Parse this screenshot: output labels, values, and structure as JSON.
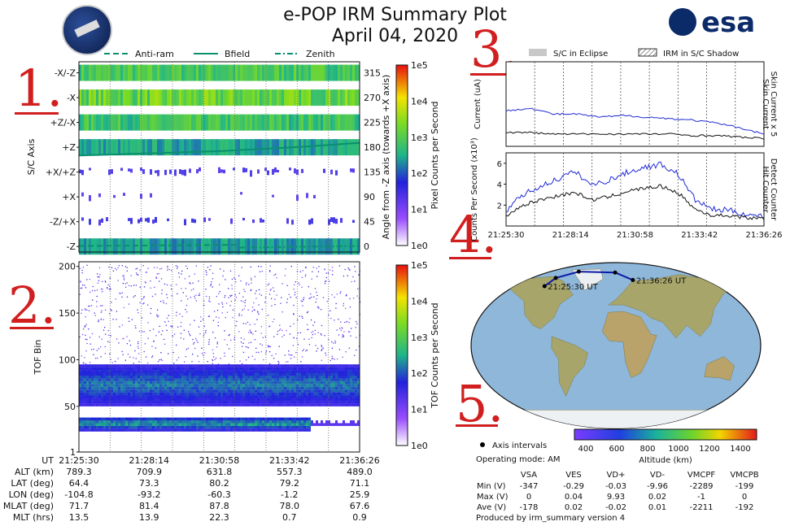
{
  "header": {
    "title": "e-POP IRM Summary Plot",
    "date": "April 04, 2020",
    "agency": "esa"
  },
  "annotations": [
    "1.",
    "2.",
    "3.",
    "4.",
    "5."
  ],
  "colors": {
    "annotation": "#d11f1f",
    "bfield": "#0a8f6f",
    "antiram": "#0a8f6f",
    "zenith": "#0a8f6f",
    "skin": "#1f2ad6",
    "hit": "#111111",
    "orbit": "#0a1aa8"
  },
  "chart_data": [
    {
      "id": "sc-axis",
      "type": "heatmap",
      "ylabel": "S/C Axis",
      "y2label": "Angle from -Z axis (towards +X axis)",
      "rows": [
        "-X/-Z",
        "-X",
        "+Z/-X",
        "+Z",
        "+X/+Z",
        "+X",
        "-Z/+X",
        "-Z"
      ],
      "right_ticks": [
        "315",
        "270",
        "225",
        "180",
        "135",
        "90",
        "45",
        "0"
      ],
      "ylim": [
        -10,
        335
      ],
      "row_intensity": [
        0.8,
        0.95,
        0.75,
        0.55,
        0.1,
        0.06,
        0.12,
        0.5
      ],
      "legend": [
        {
          "label": "Anti-ram",
          "style": "dashed"
        },
        {
          "label": "Bfield",
          "style": "solid"
        },
        {
          "label": "Zenith",
          "style": "dashdot"
        }
      ],
      "bfield_angle": {
        "x": [
          0,
          0.5,
          0.8,
          1.0
        ],
        "y": [
          165,
          173,
          181,
          188
        ]
      },
      "antiram_angle": {
        "x": [
          0,
          0.57
        ],
        "y": [
          1,
          3
        ]
      },
      "zenith_angle": {
        "x": [
          0.57,
          1.0
        ],
        "y": [
          -2,
          1
        ]
      },
      "colorbar": {
        "label": "Pixel Counts per Second",
        "ticks": [
          "1e5",
          "1e4",
          "1e3",
          "1e2",
          "1e1",
          "1e0"
        ]
      }
    },
    {
      "id": "tof",
      "type": "heatmap",
      "ylabel": "TOF Bin",
      "ylim": [
        1,
        205
      ],
      "yticks": [
        1,
        50,
        100,
        150,
        200
      ],
      "bands": [
        {
          "center": 72,
          "halfwidth": 22,
          "intensity": 0.75
        },
        {
          "center": 30,
          "halfwidth": 7,
          "intensity": 0.9
        }
      ],
      "colorbar": {
        "label": "TOF Counts per Second",
        "ticks": [
          "1e5",
          "1e4",
          "1e3",
          "1e2",
          "1e1",
          "1e0"
        ]
      }
    },
    {
      "id": "current",
      "type": "line",
      "ylabel": "Current (uA)",
      "right_labels": [
        "Skin Current x 5",
        "Skin Current"
      ],
      "ylim": [
        -0.5,
        5
      ],
      "series": [
        {
          "name": "Skin Current x 5",
          "values": [
            1.8,
            2.0,
            1.6,
            1.6,
            1.4,
            1.5,
            1.4,
            1.3,
            1.2,
            1.0,
            0.7,
            0.3
          ]
        },
        {
          "name": "Skin Current",
          "values": [
            0.4,
            0.4,
            0.3,
            0.3,
            0.3,
            0.3,
            0.3,
            0.3,
            0.2,
            0.2,
            0.1,
            0.0
          ]
        }
      ],
      "legend": [
        {
          "label": "S/C in Eclipse",
          "style": "solid"
        },
        {
          "label": "IRM in S/C Shadow",
          "style": "hatched"
        }
      ]
    },
    {
      "id": "counts",
      "type": "line",
      "ylabel": "Counts Per Second (x10³)",
      "right_labels": [
        "Detect Counter",
        "Hit Counter"
      ],
      "xticks": [
        "21:25:30",
        "21:28:14",
        "21:30:58",
        "21:33:42",
        "21:36:26"
      ],
      "ylim": [
        0,
        7
      ],
      "yticks": [
        2,
        4,
        6
      ],
      "series": [
        {
          "name": "Detect Counter",
          "values": [
            1.5,
            3.0,
            3.8,
            4.5,
            5.2,
            3.9,
            4.4,
            5.1,
            5.6,
            5.9,
            5.0,
            2.5,
            1.6,
            1.5,
            1.1,
            0.9
          ]
        },
        {
          "name": "Hit Counter",
          "values": [
            1.0,
            2.0,
            2.5,
            2.9,
            3.2,
            2.5,
            2.8,
            3.3,
            3.6,
            3.8,
            3.2,
            1.6,
            1.0,
            1.0,
            0.8,
            0.7
          ]
        }
      ]
    }
  ],
  "time_axis": {
    "ticks": [
      "21:25:30",
      "21:28:14",
      "21:30:58",
      "21:33:42",
      "21:36:26"
    ]
  },
  "ephemeris": [
    {
      "label": "UT",
      "values": [
        "21:25:30",
        "21:28:14",
        "21:30:58",
        "21:33:42",
        "21:36:26"
      ]
    },
    {
      "label": "ALT (km)",
      "values": [
        "789.3",
        "709.9",
        "631.8",
        "557.3",
        "489.0"
      ]
    },
    {
      "label": "LAT (deg)",
      "values": [
        "64.4",
        "73.3",
        "80.2",
        "79.2",
        "71.1"
      ]
    },
    {
      "label": "LON (deg)",
      "values": [
        "-104.8",
        "-93.2",
        "-60.3",
        "-1.2",
        "25.9"
      ]
    },
    {
      "label": "MLAT (deg)",
      "values": [
        "71.7",
        "81.4",
        "87.8",
        "78.0",
        "67.6"
      ]
    },
    {
      "label": "MLT (hrs)",
      "values": [
        "13.5",
        "13.9",
        "22.3",
        "0.7",
        "0.9"
      ]
    }
  ],
  "map": {
    "start_label": "21:25:30 UT",
    "end_label": "21:36:26 UT",
    "track_lon": [
      -104.8,
      -93.2,
      -60.3,
      -1.2,
      25.9
    ],
    "track_lat": [
      64.4,
      73.3,
      80.2,
      79.2,
      71.1
    ],
    "colorbar_label": "Altitude (km)",
    "colorbar_ticks": [
      "400",
      "600",
      "800",
      "1000",
      "1200",
      "1400"
    ],
    "legend": "Axis intervals",
    "mode": "Operating mode: AM"
  },
  "voltages": {
    "columns": [
      "VSA",
      "VES",
      "VD+",
      "VD-",
      "VMCPF",
      "VMCPB"
    ],
    "rows": [
      {
        "label": "Min (V)",
        "values": [
          "-347",
          "-0.29",
          "-0.03",
          "-9.96",
          "-2289",
          "-199"
        ]
      },
      {
        "label": "Max (V)",
        "values": [
          "0",
          "0.04",
          "9.93",
          "0.02",
          "-1",
          "0"
        ]
      },
      {
        "label": "Ave (V)",
        "values": [
          "-178",
          "0.02",
          "-0.02",
          "0.01",
          "-2211",
          "-192"
        ]
      }
    ]
  },
  "footer": "Produced by irm_summary version 4"
}
